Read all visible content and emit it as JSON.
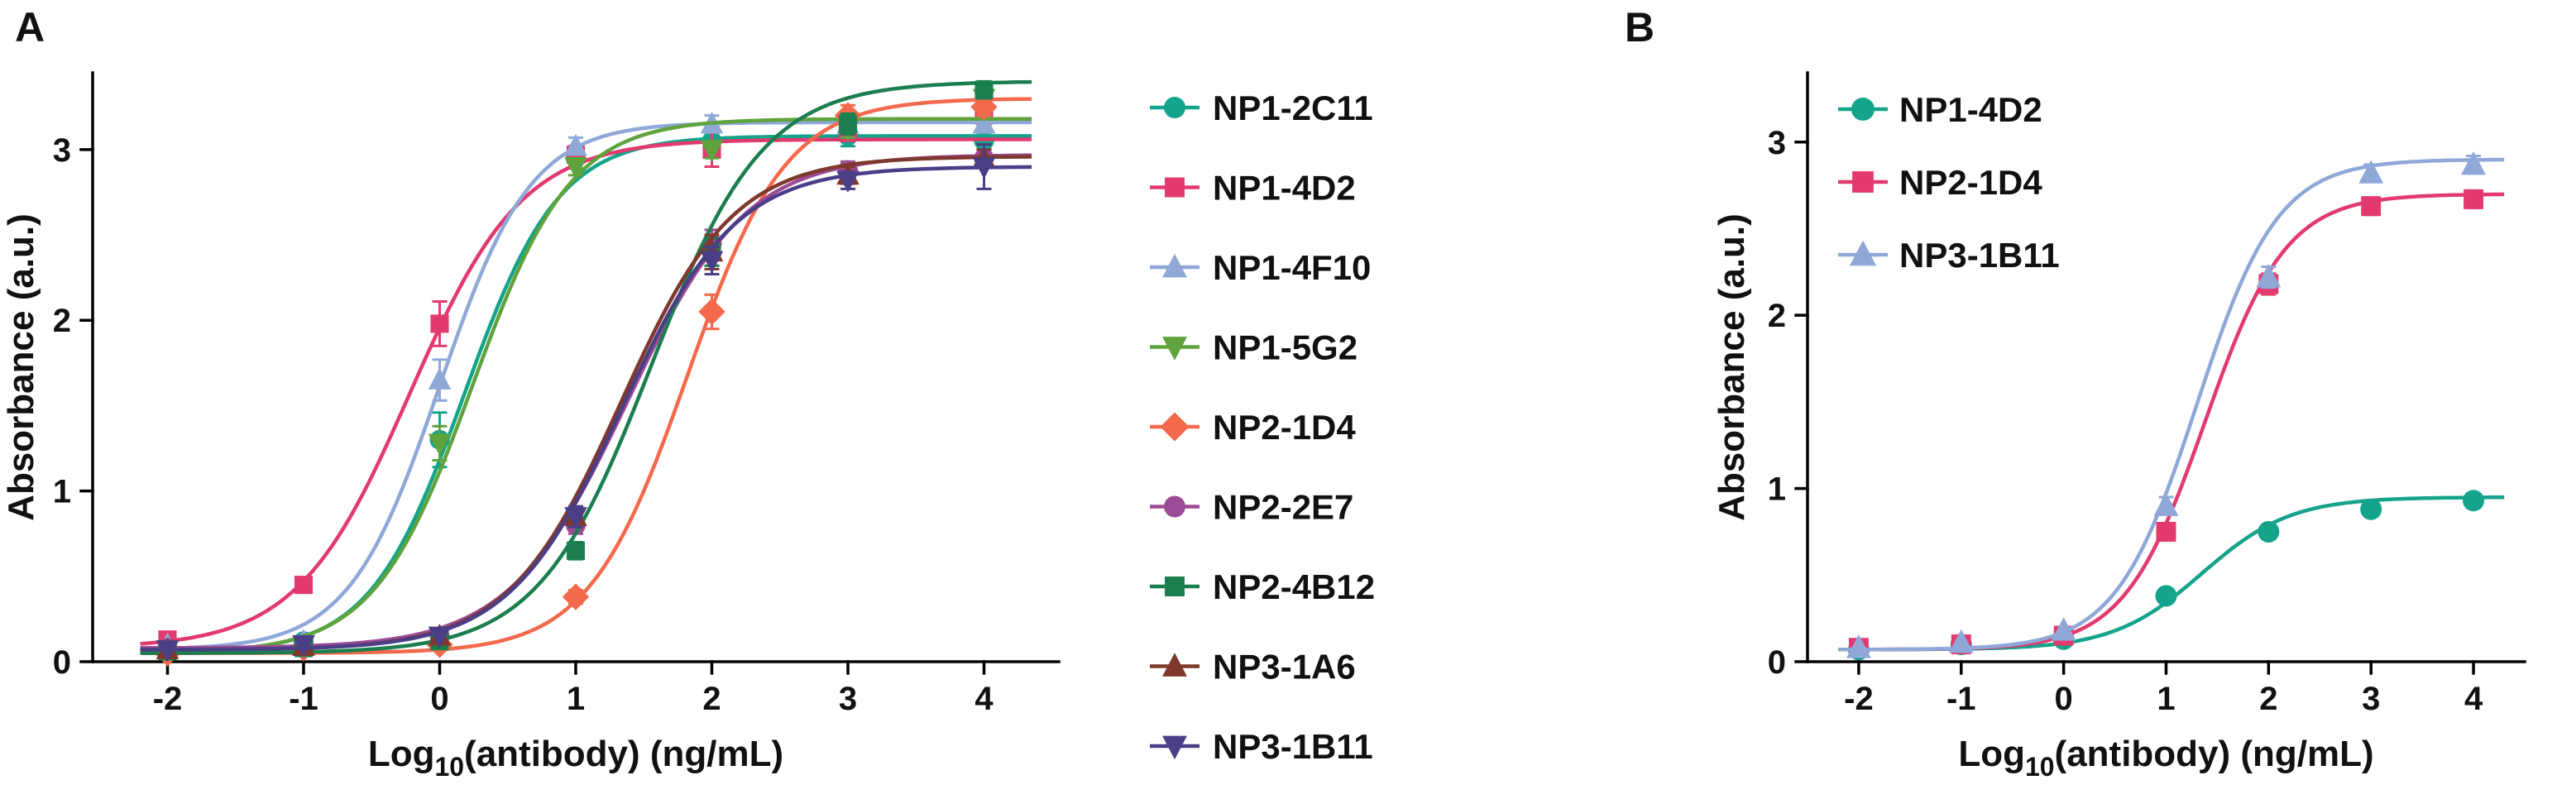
{
  "figure": {
    "background": "#ffffff",
    "text_color": "#111111",
    "axis_color": "#000000"
  },
  "panels": [
    {
      "label": "A"
    },
    {
      "label": "B"
    }
  ],
  "chart_data": [
    {
      "type": "line",
      "title": "",
      "xlabel": {
        "pre": "Log",
        "sub": "10",
        "post": "(antibody) (ng/mL)"
      },
      "ylabel": "Absorbance (a.u.)",
      "x": [
        -2,
        -1,
        0,
        1,
        2,
        3,
        4
      ],
      "xticks": [
        -2,
        -1,
        0,
        1,
        2,
        3,
        4
      ],
      "yticks": [
        0,
        1,
        2,
        3
      ],
      "xlim": [
        -2.55,
        4.55
      ],
      "ylim": [
        0,
        3.45
      ],
      "grid": false,
      "legend_position": "right-outside",
      "series": [
        {
          "name": "NP1-2C11",
          "color": "#14a38b",
          "marker": "circle",
          "values": [
            0.08,
            0.12,
            1.3,
            2.95,
            3.05,
            3.08,
            3.05
          ],
          "errors": [
            0,
            0,
            0.16,
            0.06,
            0.05,
            0.06,
            0.05
          ],
          "fit": {
            "bottom": 0.05,
            "top": 3.08,
            "logec50": 0.18,
            "hill": 1.25
          }
        },
        {
          "name": "NP1-4D2",
          "color": "#e23a6e",
          "marker": "square",
          "values": [
            0.13,
            0.45,
            1.98,
            2.97,
            3.0,
            3.1,
            3.2
          ],
          "errors": [
            0,
            0.04,
            0.13,
            0.05,
            0.1,
            0.05,
            0.06
          ],
          "fit": {
            "bottom": 0.08,
            "top": 3.06,
            "logec50": -0.22,
            "hill": 1.05
          }
        },
        {
          "name": "NP1-4F10",
          "color": "#8fa8d8",
          "marker": "triangle-up",
          "values": [
            0.1,
            0.12,
            1.65,
            3.02,
            3.15,
            3.15,
            3.15
          ],
          "errors": [
            0,
            0,
            0.12,
            0.05,
            0.05,
            0,
            0.05
          ],
          "fit": {
            "bottom": 0.07,
            "top": 3.16,
            "logec50": 0.0,
            "hill": 1.3
          }
        },
        {
          "name": "NP1-5G2",
          "color": "#5fa33d",
          "marker": "triangle-down",
          "values": [
            0.07,
            0.1,
            1.28,
            2.9,
            3.0,
            3.12,
            3.3
          ],
          "errors": [
            0,
            0,
            0.1,
            0.05,
            0.05,
            0.05,
            0.05
          ],
          "fit": {
            "bottom": 0.05,
            "top": 3.18,
            "logec50": 0.24,
            "hill": 1.2
          }
        },
        {
          "name": "NP2-1D4",
          "color": "#f4694c",
          "marker": "diamond",
          "values": [
            0.05,
            0.08,
            0.1,
            0.38,
            2.05,
            3.2,
            3.25
          ],
          "errors": [
            0,
            0,
            0,
            0.04,
            0.1,
            0.06,
            0.05
          ],
          "fit": {
            "bottom": 0.05,
            "top": 3.3,
            "logec50": 1.82,
            "hill": 1.2
          }
        },
        {
          "name": "NP2-2E7",
          "color": "#9c4b96",
          "marker": "circle",
          "values": [
            0.08,
            0.1,
            0.15,
            0.8,
            2.45,
            2.88,
            2.95
          ],
          "errors": [
            0,
            0,
            0,
            0.05,
            0.08,
            0.05,
            0.05
          ],
          "fit": {
            "bottom": 0.08,
            "top": 2.97,
            "logec50": 1.38,
            "hill": 1.0
          }
        },
        {
          "name": "NP2-4B12",
          "color": "#1b7e4f",
          "marker": "square",
          "values": [
            0.06,
            0.08,
            0.12,
            0.65,
            2.4,
            3.15,
            3.35
          ],
          "errors": [
            0,
            0,
            0,
            0.05,
            0.08,
            0.06,
            0.05
          ],
          "fit": {
            "bottom": 0.05,
            "top": 3.4,
            "logec50": 1.55,
            "hill": 1.05
          }
        },
        {
          "name": "NP3-1A6",
          "color": "#7e392c",
          "marker": "triangle-up",
          "values": [
            0.07,
            0.09,
            0.15,
            0.85,
            2.4,
            2.85,
            2.95
          ],
          "errors": [
            0,
            0,
            0,
            0.06,
            0.1,
            0.05,
            0.05
          ],
          "fit": {
            "bottom": 0.07,
            "top": 2.96,
            "logec50": 1.33,
            "hill": 1.05
          }
        },
        {
          "name": "NP3-1B11",
          "color": "#4a3e87",
          "marker": "triangle-down",
          "values": [
            0.07,
            0.1,
            0.15,
            0.85,
            2.35,
            2.82,
            2.9
          ],
          "errors": [
            0,
            0,
            0,
            0.06,
            0.08,
            0.05,
            0.13
          ],
          "fit": {
            "bottom": 0.07,
            "top": 2.9,
            "logec50": 1.34,
            "hill": 1.05
          }
        }
      ]
    },
    {
      "type": "line",
      "title": "",
      "xlabel": {
        "pre": "Log",
        "sub": "10",
        "post": "(antibody) (ng/mL)"
      },
      "ylabel": "Absorbance (a.u.)",
      "x": [
        -2,
        -1,
        0,
        1,
        2,
        3,
        4
      ],
      "xticks": [
        -2,
        -1,
        0,
        1,
        2,
        3,
        4
      ],
      "yticks": [
        0,
        1,
        2,
        3
      ],
      "xlim": [
        -2.5,
        4.5
      ],
      "ylim": [
        0,
        3.4
      ],
      "grid": false,
      "legend_position": "inside-top-left",
      "series": [
        {
          "name": "NP1-4D2",
          "color": "#14a38b",
          "marker": "circle",
          "values": [
            0.07,
            0.1,
            0.13,
            0.38,
            0.75,
            0.88,
            0.93
          ],
          "errors": [
            0,
            0,
            0,
            0.03,
            0.04,
            0.04,
            0.04
          ],
          "fit": {
            "bottom": 0.07,
            "top": 0.95,
            "logec50": 1.35,
            "hill": 1.0
          }
        },
        {
          "name": "NP2-1D4",
          "color": "#e23a6e",
          "marker": "square",
          "values": [
            0.08,
            0.1,
            0.15,
            0.75,
            2.18,
            2.63,
            2.67
          ],
          "errors": [
            0,
            0,
            0,
            0.05,
            0.06,
            0.05,
            0.05
          ],
          "fit": {
            "bottom": 0.07,
            "top": 2.7,
            "logec50": 1.38,
            "hill": 1.1
          }
        },
        {
          "name": "NP3-1B11",
          "color": "#8fa8d8",
          "marker": "triangle-up",
          "values": [
            0.08,
            0.11,
            0.18,
            0.9,
            2.22,
            2.82,
            2.87
          ],
          "errors": [
            0,
            0,
            0,
            0.05,
            0.06,
            0.05,
            0.05
          ],
          "fit": {
            "bottom": 0.07,
            "top": 2.9,
            "logec50": 1.3,
            "hill": 1.1
          }
        }
      ]
    }
  ]
}
